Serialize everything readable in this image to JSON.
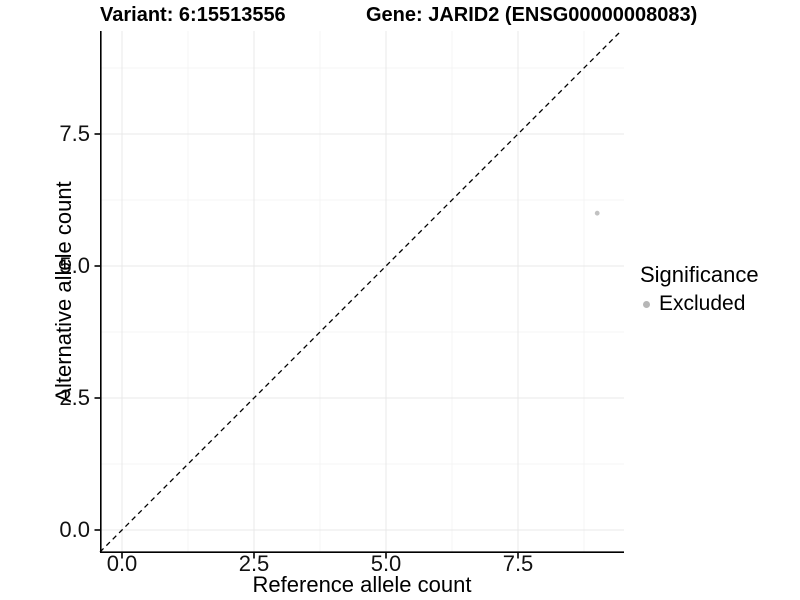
{
  "chart_data": {
    "type": "scatter",
    "titles": {
      "left": "Variant: 6:15513556",
      "right": "Gene: JARID2 (ENSG00000008083)"
    },
    "xlabel": "Reference allele count",
    "ylabel": "Alternative allele count",
    "xlim": [
      -0.45,
      9.5
    ],
    "ylim": [
      -0.45,
      9.45
    ],
    "x_ticks": {
      "values": [
        0,
        2.5,
        5,
        7.5
      ],
      "labels": [
        "0.0",
        "2.5",
        "5.0",
        "7.5"
      ]
    },
    "y_ticks": {
      "values": [
        0,
        2.5,
        5,
        7.5
      ],
      "labels": [
        "0.0",
        "2.5",
        "5.0",
        "7.5"
      ]
    },
    "minor_ticks": [
      1.25,
      3.75,
      6.25,
      8.75
    ],
    "grid": "major+minor",
    "background": "#ffffff",
    "series": [
      {
        "name": "Excluded",
        "color": "#bebebe",
        "points": [
          [
            9,
            6
          ]
        ]
      }
    ],
    "reference_line": {
      "kind": "identity y=x",
      "style": "dashed",
      "color": "#000000"
    },
    "legend": {
      "title": "Significance",
      "position": "right",
      "items": [
        {
          "label": "Excluded",
          "swatch_color": "#b7b7b7"
        }
      ]
    },
    "colors": {
      "axis_line": "#000000",
      "major_grid": "#e8e8e8",
      "minor_grid": "#f4f4f4",
      "tick_text": "#111111",
      "point": "#c2c2c2"
    }
  }
}
